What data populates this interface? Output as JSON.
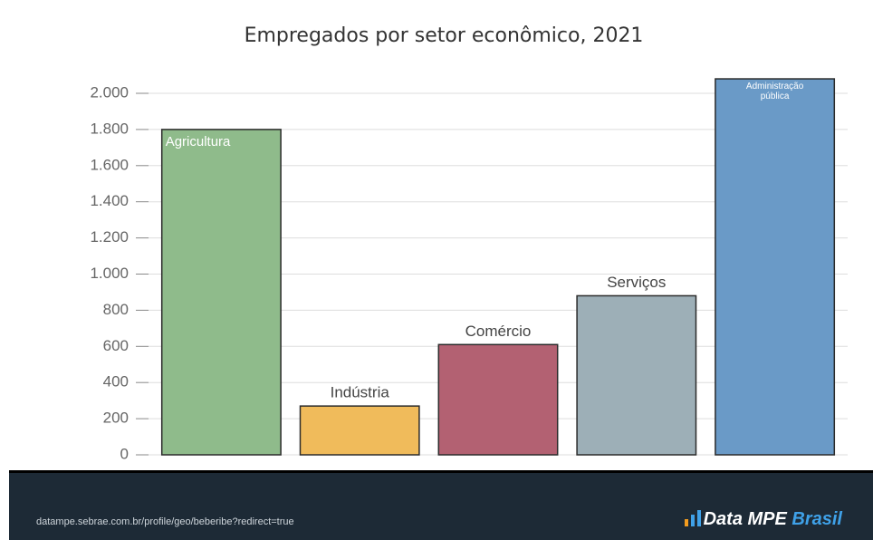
{
  "chart_data": {
    "type": "bar",
    "title": "Empregados por setor econômico, 2021",
    "categories": [
      "Agricultura",
      "Indústria",
      "Comércio",
      "Serviços",
      "Administração pública"
    ],
    "values": [
      1800,
      270,
      610,
      880,
      2080
    ],
    "colors": [
      "#8fbb8b",
      "#f0bb5b",
      "#b36172",
      "#9dafb7",
      "#6a9ac7"
    ],
    "ylim": [
      0,
      2000
    ],
    "yticks": [
      0,
      {
        "value": 200,
        "label": "200"
      },
      {
        "value": 400,
        "label": "400"
      },
      {
        "value": 600,
        "label": "600"
      },
      {
        "value": 800,
        "label": "800"
      },
      {
        "value": 1000,
        "label": "1.000"
      },
      {
        "value": 1200,
        "label": "1.200"
      },
      {
        "value": 1400,
        "label": "1.400"
      },
      {
        "value": 1600,
        "label": "1.600"
      },
      {
        "value": 1800,
        "label": "1.800"
      },
      {
        "value": 2000,
        "label": "2.000"
      }
    ],
    "grid": true
  },
  "footer": {
    "url": "datampe.sebrae.com.br/profile/geo/beberibe?redirect=true",
    "brand": "Data MPE",
    "brand_accent": "Brasil"
  }
}
